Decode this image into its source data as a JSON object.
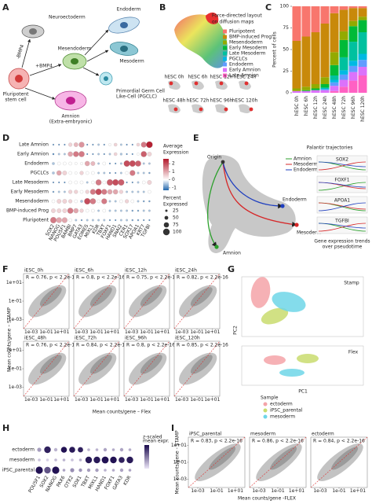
{
  "A": {
    "letter": "A",
    "neuroectoderm": "Neuroectoderm",
    "mesendoderm": "Mesendoderm",
    "endoderm": "Endoderm",
    "minus_bmp4": "-BMP4",
    "plus_bmp4": "+BMP4",
    "mesoderm": "Mesoderm",
    "pluripotent": [
      "Pluripotent",
      "stem cell"
    ],
    "pgclc": [
      "Primordial Germ Cell",
      "Like-Cell (PGCLC)"
    ],
    "amnion": [
      "Amnion",
      "(Extra-embryonic)"
    ]
  },
  "B": {
    "letter": "B",
    "title": [
      "Force-directed layout",
      "on diffusion maps"
    ],
    "timepoints": [
      "hESC 0h",
      "hESC 6h",
      "hESC 12h",
      "hESC 24h",
      "hESC 48h",
      "hESC 72h",
      "hESC 96h",
      "hESC 120h"
    ]
  },
  "C": {
    "letter": "C",
    "type": "bar",
    "stacked": true,
    "ylabel": "Percent of cells",
    "categories": [
      "hESC 0h",
      "hESC 6h",
      "hESC 12h",
      "hESC 24h",
      "hESC 48h",
      "hESC 72h",
      "hESC 96h",
      "hESC 120h"
    ],
    "series": [
      {
        "name": "Pluripotent",
        "color": "#f8766d",
        "values": [
          40,
          35,
          30,
          20,
          8,
          4,
          2,
          2
        ]
      },
      {
        "name": "BMP-induced Prog.",
        "color": "#c8890a",
        "values": [
          55,
          58,
          60,
          62,
          45,
          25,
          15,
          10
        ]
      },
      {
        "name": "Mesendoderm",
        "color": "#93aa00",
        "values": [
          3,
          4,
          5,
          8,
          15,
          10,
          6,
          4
        ]
      },
      {
        "name": "Early Mesoderm",
        "color": "#00ba38",
        "values": [
          0,
          1,
          2,
          4,
          12,
          20,
          18,
          14
        ]
      },
      {
        "name": "Late Mesoderm",
        "color": "#00c19f",
        "values": [
          0,
          0,
          0,
          1,
          5,
          15,
          22,
          25
        ]
      },
      {
        "name": "PGCLCs",
        "color": "#00b9e3",
        "values": [
          0,
          0,
          0,
          1,
          3,
          5,
          6,
          7
        ]
      },
      {
        "name": "Endoderm",
        "color": "#619cff",
        "values": [
          0,
          0,
          0,
          1,
          4,
          6,
          7,
          8
        ]
      },
      {
        "name": "Early Amnion",
        "color": "#db72fb",
        "values": [
          2,
          2,
          3,
          3,
          6,
          8,
          10,
          10
        ]
      },
      {
        "name": "Late Amnion",
        "color": "#ff61c3",
        "values": [
          0,
          0,
          0,
          0,
          2,
          7,
          14,
          20
        ]
      }
    ],
    "ylim": [
      0,
      100
    ],
    "yticks": [
      0,
      25,
      50,
      75,
      100
    ]
  },
  "D": {
    "letter": "D",
    "type": "dot",
    "rows": [
      "Late Amnion",
      "Early Amnion",
      "Endoderm",
      "PGCLCs",
      "Late Mesoderm",
      "Early Mesoderm",
      "Mesendoderm",
      "BMP-induced Prog",
      "Pluripotent"
    ],
    "genes": [
      "SOX2",
      "NANOG",
      "POU5F1",
      "BAMBI",
      "BMP7",
      "GATA3",
      "EOMES",
      "MIXL1",
      "KDR",
      "TBXT",
      "FOXF1",
      "HAND1",
      "SNAI2",
      "CER1",
      "SOX17",
      "APOA1",
      "KRT7",
      "TGFBI"
    ],
    "expression": [
      [
        -1,
        -1,
        -1,
        0.5,
        0.8,
        1.2,
        -1,
        -1,
        -0.5,
        -1,
        0,
        0.5,
        -0.5,
        -1,
        -1,
        0.5,
        1.5,
        2.5
      ],
      [
        -1,
        -0.5,
        -0.5,
        1,
        1.5,
        1.5,
        -1,
        -1,
        -0.5,
        -1,
        -0.5,
        0.5,
        -0.5,
        -1,
        -1,
        0,
        1.8,
        0.5
      ],
      [
        -0.5,
        0,
        0,
        0,
        0,
        0,
        1,
        0.8,
        -0.5,
        0,
        -1,
        -1,
        -0.5,
        2,
        2,
        1.8,
        -0.5,
        -0.5
      ],
      [
        -0.5,
        1,
        0.5,
        0,
        0,
        0.5,
        0,
        0,
        -0.5,
        -0.5,
        -1,
        -1,
        -0.5,
        0,
        1.5,
        -0.5,
        -0.5,
        -0.8
      ],
      [
        -1,
        -1,
        -1,
        0,
        0,
        0,
        -0.5,
        0,
        1.5,
        0,
        1.8,
        2,
        1.8,
        -1,
        -1,
        -0.5,
        0,
        0.5
      ],
      [
        -0.8,
        -0.5,
        -0.5,
        0.5,
        0.5,
        0,
        0.5,
        1.5,
        2,
        1.5,
        1,
        1,
        0.5,
        -0.5,
        -0.5,
        -0.5,
        -0.5,
        0
      ],
      [
        0,
        0.5,
        0.5,
        0.5,
        0,
        -0.5,
        2,
        1.5,
        0,
        1.5,
        -0.5,
        -0.5,
        0,
        0.5,
        0,
        -0.5,
        -0.8,
        -0.8
      ],
      [
        0.5,
        0.5,
        0.5,
        1.5,
        1,
        0.5,
        0,
        0,
        -0.5,
        0,
        -0.5,
        -0.5,
        -0.5,
        -0.5,
        -0.8,
        -0.8,
        -0.5,
        -0.5
      ],
      [
        1.5,
        1,
        1,
        0,
        -0.5,
        -1,
        -0.5,
        -0.5,
        -0.5,
        -0.5,
        -1,
        -1,
        -0.5,
        -0.5,
        -0.8,
        -0.8,
        -1,
        -1
      ]
    ],
    "percent": [
      [
        10,
        10,
        10,
        50,
        60,
        80,
        10,
        10,
        20,
        10,
        30,
        40,
        20,
        10,
        10,
        40,
        80,
        95
      ],
      [
        15,
        20,
        20,
        70,
        80,
        85,
        10,
        10,
        20,
        10,
        20,
        40,
        25,
        10,
        10,
        30,
        85,
        60
      ],
      [
        30,
        40,
        40,
        40,
        30,
        30,
        70,
        60,
        20,
        40,
        10,
        10,
        20,
        90,
        90,
        85,
        20,
        20
      ],
      [
        30,
        70,
        60,
        40,
        30,
        50,
        40,
        40,
        20,
        20,
        10,
        10,
        20,
        40,
        80,
        20,
        20,
        15
      ],
      [
        10,
        10,
        10,
        40,
        40,
        40,
        20,
        40,
        85,
        40,
        90,
        90,
        90,
        10,
        10,
        20,
        40,
        60
      ],
      [
        15,
        20,
        20,
        50,
        50,
        40,
        50,
        80,
        90,
        80,
        70,
        70,
        50,
        20,
        20,
        20,
        20,
        40
      ],
      [
        40,
        60,
        60,
        50,
        40,
        30,
        90,
        85,
        40,
        80,
        20,
        20,
        40,
        50,
        40,
        20,
        15,
        15
      ],
      [
        60,
        60,
        60,
        85,
        70,
        50,
        40,
        40,
        20,
        40,
        20,
        20,
        20,
        20,
        15,
        15,
        20,
        20
      ],
      [
        90,
        80,
        80,
        40,
        20,
        10,
        20,
        20,
        20,
        20,
        10,
        10,
        20,
        20,
        15,
        15,
        10,
        10
      ]
    ],
    "color_title": [
      "Average",
      "Expression"
    ],
    "color_lim": [
      -1.3,
      2.6
    ],
    "color_ticks": [
      2,
      1,
      0,
      -1
    ],
    "size_title": [
      "Percent",
      "Expressed"
    ],
    "size_ticks": [
      25,
      50,
      75,
      100
    ]
  },
  "E": {
    "letter": "E",
    "title": "Palantir trajectories",
    "origin": "Origin",
    "lineages": [
      {
        "name": "Amnion",
        "color": "#2ca02c"
      },
      {
        "name": "Mesoderm",
        "color": "#d62728"
      },
      {
        "name": "Endoderm",
        "color": "#1f3fbf"
      }
    ],
    "genes": [
      "SOX2",
      "FOXF1",
      "APOA1",
      "TGFBI"
    ],
    "caption": [
      "Gene expression trends",
      "over pseudotime"
    ]
  },
  "F": {
    "letter": "F",
    "ylabel": "Mean counts/gene – STAMP",
    "xlabel": "Mean counts/gene – Flex",
    "panels": [
      {
        "title": "iESC_0h",
        "stat": "R = 0.76, p < 2.2e-16"
      },
      {
        "title": "iESC_6h",
        "stat": "R = 0.8, p < 2.2e-16"
      },
      {
        "title": "iESC_12h",
        "stat": "R = 0.75, p < 2.2e-16"
      },
      {
        "title": "iESC_24h",
        "stat": "R = 0.82, p < 2.2e-16"
      },
      {
        "title": "iESC_48h",
        "stat": "R = 0.76, p < 2.2e-16"
      },
      {
        "title": "iESC_72h",
        "stat": "R = 0.84, p < 2.2e-16"
      },
      {
        "title": "iESC_96h",
        "stat": "R = 0.8, p < 2.2e-16"
      },
      {
        "title": "iESC_120h",
        "stat": "R = 0.85, p < 2.2e-16"
      }
    ],
    "xlim": [
      0.0001,
      100
    ],
    "ylim": [
      0.0001,
      100
    ],
    "log": true,
    "xticks": [
      {
        "value": 0.001,
        "label": "1e-03"
      },
      {
        "value": 0.1,
        "label": "1e-01"
      },
      {
        "value": 10,
        "label": "1e+01"
      }
    ],
    "yticks": [
      {
        "value": 0.001,
        "label": "1e-03"
      },
      {
        "value": 0.1,
        "label": "1e-01"
      },
      {
        "value": 10,
        "label": "1e+01"
      }
    ]
  },
  "G": {
    "letter": "G",
    "stamp": "Stamp",
    "flex": "Flex",
    "pc1": "PC1",
    "pc2": "PC2",
    "legend_title": "Sample",
    "samples": [
      {
        "name": "ectoderm",
        "color": "#f4a3a8"
      },
      {
        "name": "iPSC_parental",
        "color": "#c9dc6e"
      },
      {
        "name": "mesoderm",
        "color": "#6fd6e8"
      }
    ]
  },
  "H": {
    "letter": "H",
    "type": "dot",
    "rows": [
      "ectoderm",
      "mesoderm",
      "iPSC_parental"
    ],
    "genes": [
      "POU5F1",
      "SOX2",
      "NANOG",
      "PAX6",
      "OTX2",
      "SOX1",
      "TBXT",
      "MIXL1",
      "HAND1",
      "FOXF1",
      "GATA3",
      "KDR"
    ],
    "expression": [
      [
        -0.5,
        1.2,
        -0.8,
        1.4,
        1.3,
        1.2,
        -0.8,
        -0.8,
        -0.6,
        -0.7,
        -0.6,
        -0.7
      ],
      [
        -1,
        -1.2,
        -0.9,
        -0.8,
        -1,
        -0.8,
        1.3,
        1.3,
        1.4,
        1.4,
        1.2,
        1.3
      ],
      [
        1.4,
        0.5,
        1.4,
        -0.6,
        -0.3,
        -0.4,
        -0.5,
        -0.5,
        -0.8,
        -0.7,
        -0.6,
        -0.6
      ]
    ],
    "percent": [
      [
        40,
        80,
        30,
        70,
        70,
        60,
        20,
        20,
        30,
        20,
        30,
        20
      ],
      [
        20,
        20,
        20,
        20,
        20,
        20,
        80,
        80,
        85,
        80,
        70,
        80
      ],
      [
        90,
        80,
        90,
        20,
        40,
        30,
        30,
        30,
        20,
        20,
        30,
        20
      ]
    ],
    "color_title": [
      "z-scaled",
      "mean expr."
    ],
    "color_lim": [
      -1.5,
      1.5
    ]
  },
  "I": {
    "letter": "I",
    "ylabel": "Mean counts/gene - STAMP",
    "xlabel": "Mean counts/gene -FLEX",
    "panels": [
      {
        "title": "iPSC_parental",
        "stat": "R = 0.83, p < 2.2e-16"
      },
      {
        "title": "mesoderm",
        "stat": "R = 0.86, p < 2.2e-16"
      },
      {
        "title": "ectoderm",
        "stat": "R = 0.84, p < 2.2e-16"
      }
    ],
    "xlim": [
      0.0001,
      100
    ],
    "ylim": [
      0.0001,
      100
    ],
    "log": true,
    "xticks": [
      {
        "value": 0.001,
        "label": "1e-03"
      },
      {
        "value": 0.1,
        "label": "1e-01"
      },
      {
        "value": 10,
        "label": "1e+01"
      }
    ],
    "yticks": [
      {
        "value": 0.001,
        "label": "1e-03"
      },
      {
        "value": 0.1,
        "label": "1e-01"
      },
      {
        "value": 10,
        "label": "1e+01"
      }
    ]
  }
}
